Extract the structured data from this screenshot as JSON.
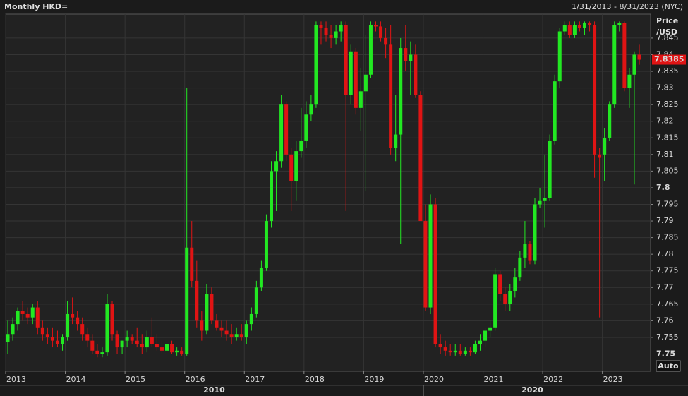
{
  "chart_data": {
    "type": "candlestick",
    "title": "Monthly HKD=",
    "date_range": "1/31/2013 - 8/31/2023 (NYC)",
    "ylabel_lines": [
      "Price",
      "/USD"
    ],
    "scale_button": "Auto",
    "x_groups": [
      "2010",
      "2020"
    ],
    "up_color": "#22e822",
    "down_color": "#e01414",
    "grid": true,
    "ylim": [
      7.7448,
      7.8522
    ],
    "yticks": [
      7.75,
      7.755,
      7.76,
      7.765,
      7.77,
      7.775,
      7.78,
      7.785,
      7.79,
      7.795,
      7.8,
      7.805,
      7.81,
      7.815,
      7.82,
      7.825,
      7.83,
      7.835,
      7.84,
      7.845
    ],
    "categories": [
      "2013",
      null,
      null,
      null,
      null,
      null,
      null,
      null,
      null,
      null,
      null,
      null,
      "2014",
      null,
      null,
      null,
      null,
      null,
      null,
      null,
      null,
      null,
      null,
      null,
      "2015",
      null,
      null,
      null,
      null,
      null,
      null,
      null,
      null,
      null,
      null,
      null,
      "2016",
      null,
      null,
      null,
      null,
      null,
      null,
      null,
      null,
      null,
      null,
      null,
      "2017",
      null,
      null,
      null,
      null,
      null,
      null,
      null,
      null,
      null,
      null,
      null,
      "2018",
      null,
      null,
      null,
      null,
      null,
      null,
      null,
      null,
      null,
      null,
      null,
      "2019",
      null,
      null,
      null,
      null,
      null,
      null,
      null,
      null,
      null,
      null,
      null,
      "2020",
      null,
      null,
      null,
      null,
      null,
      null,
      null,
      null,
      null,
      null,
      null,
      "2021",
      null,
      null,
      null,
      null,
      null,
      null,
      null,
      null,
      null,
      null,
      null,
      "2022",
      null,
      null,
      null,
      null,
      null,
      null,
      null,
      null,
      null,
      null,
      null,
      "2023",
      null,
      null,
      null,
      null,
      null,
      null,
      null
    ],
    "open": [
      7.7535,
      7.756,
      7.759,
      7.763,
      7.762,
      7.761,
      7.764,
      7.758,
      7.756,
      7.755,
      7.754,
      7.753,
      7.755,
      7.762,
      7.761,
      7.759,
      7.756,
      7.754,
      7.751,
      7.75,
      7.7505,
      7.765,
      7.756,
      7.752,
      7.754,
      7.755,
      7.754,
      7.753,
      7.752,
      7.755,
      7.753,
      7.752,
      7.751,
      7.753,
      7.7505,
      7.751,
      7.75,
      7.782,
      7.772,
      7.76,
      7.757,
      7.768,
      7.76,
      7.758,
      7.757,
      7.756,
      7.755,
      7.756,
      7.755,
      7.759,
      7.762,
      7.77,
      7.776,
      7.79,
      7.805,
      7.808,
      7.825,
      7.81,
      7.802,
      7.811,
      7.814,
      7.822,
      7.825,
      7.849,
      7.848,
      7.846,
      7.845,
      7.847,
      7.849,
      7.828,
      7.841,
      7.824,
      7.829,
      7.834,
      7.849,
      7.8485,
      7.845,
      7.843,
      7.812,
      7.816,
      7.842,
      7.838,
      7.84,
      7.828,
      7.79,
      7.764,
      7.795,
      7.753,
      7.752,
      7.751,
      7.7505,
      7.751,
      7.75,
      7.751,
      7.7505,
      7.753,
      7.754,
      7.757,
      7.758,
      7.774,
      7.768,
      7.765,
      7.769,
      7.773,
      7.779,
      7.783,
      7.778,
      7.795,
      7.796,
      7.797,
      7.814,
      7.832,
      7.847,
      7.849,
      7.846,
      7.849,
      7.848,
      7.8495,
      7.849,
      7.81,
      7.81,
      7.815,
      7.825,
      7.849,
      7.8495,
      7.83,
      7.834,
      7.84
    ],
    "high": [
      7.76,
      7.761,
      7.764,
      7.766,
      7.764,
      7.765,
      7.766,
      7.76,
      7.758,
      7.758,
      7.757,
      7.756,
      7.766,
      7.767,
      7.763,
      7.761,
      7.758,
      7.756,
      7.753,
      7.752,
      7.768,
      7.766,
      7.757,
      7.754,
      7.757,
      7.756,
      7.758,
      7.756,
      7.757,
      7.761,
      7.756,
      7.754,
      7.754,
      7.754,
      7.752,
      7.752,
      7.83,
      7.79,
      7.778,
      7.763,
      7.771,
      7.77,
      7.762,
      7.76,
      7.76,
      7.759,
      7.758,
      7.759,
      7.76,
      7.764,
      7.772,
      7.778,
      7.792,
      7.808,
      7.811,
      7.828,
      7.826,
      7.812,
      7.814,
      7.824,
      7.826,
      7.828,
      7.85,
      7.85,
      7.85,
      7.849,
      7.849,
      7.85,
      7.85,
      7.843,
      7.842,
      7.836,
      7.846,
      7.85,
      7.85,
      7.85,
      7.848,
      7.849,
      7.828,
      7.845,
      7.849,
      7.844,
      7.843,
      7.829,
      7.795,
      7.798,
      7.797,
      7.756,
      7.754,
      7.753,
      7.753,
      7.753,
      7.752,
      7.752,
      7.754,
      7.756,
      7.758,
      7.76,
      7.776,
      7.775,
      7.77,
      7.771,
      7.776,
      7.781,
      7.79,
      7.784,
      7.797,
      7.8,
      7.81,
      7.816,
      7.834,
      7.848,
      7.85,
      7.85,
      7.85,
      7.85,
      7.85,
      7.85,
      7.85,
      7.812,
      7.818,
      7.826,
      7.85,
      7.85,
      7.85,
      7.836,
      7.841,
      7.843
    ],
    "low": [
      7.75,
      7.754,
      7.757,
      7.76,
      7.759,
      7.759,
      7.756,
      7.754,
      7.753,
      7.752,
      7.752,
      7.751,
      7.754,
      7.759,
      7.757,
      7.754,
      7.752,
      7.75,
      7.749,
      7.749,
      7.7495,
      7.754,
      7.75,
      7.75,
      7.752,
      7.753,
      7.752,
      7.75,
      7.7505,
      7.752,
      7.751,
      7.75,
      7.75,
      7.75,
      7.7495,
      7.7495,
      7.7495,
      7.77,
      7.758,
      7.754,
      7.756,
      7.759,
      7.757,
      7.755,
      7.754,
      7.753,
      7.754,
      7.754,
      7.753,
      7.757,
      7.761,
      7.769,
      7.775,
      7.788,
      7.793,
      7.806,
      7.808,
      7.793,
      7.796,
      7.809,
      7.812,
      7.82,
      7.824,
      7.843,
      7.844,
      7.842,
      7.843,
      7.844,
      7.793,
      7.825,
      7.822,
      7.817,
      7.799,
      7.833,
      7.847,
      7.844,
      7.839,
      7.81,
      7.808,
      7.783,
      7.835,
      7.828,
      7.827,
      7.79,
      7.763,
      7.762,
      7.752,
      7.75,
      7.7495,
      7.7495,
      7.7495,
      7.7495,
      7.7495,
      7.7495,
      7.75,
      7.751,
      7.752,
      7.755,
      7.757,
      7.766,
      7.763,
      7.763,
      7.767,
      7.772,
      7.776,
      7.777,
      7.777,
      7.794,
      7.788,
      7.796,
      7.813,
      7.83,
      7.846,
      7.845,
      7.845,
      7.847,
      7.846,
      7.847,
      7.803,
      7.761,
      7.802,
      7.814,
      7.824,
      7.847,
      7.829,
      7.824,
      7.801,
      7.837
    ],
    "close": [
      7.756,
      7.759,
      7.763,
      7.762,
      7.761,
      7.764,
      7.758,
      7.756,
      7.755,
      7.754,
      7.753,
      7.755,
      7.762,
      7.761,
      7.759,
      7.756,
      7.754,
      7.751,
      7.75,
      7.7505,
      7.765,
      7.756,
      7.752,
      7.754,
      7.755,
      7.754,
      7.753,
      7.752,
      7.755,
      7.753,
      7.752,
      7.751,
      7.753,
      7.7505,
      7.751,
      7.75,
      7.782,
      7.772,
      7.76,
      7.757,
      7.768,
      7.76,
      7.758,
      7.757,
      7.756,
      7.755,
      7.756,
      7.755,
      7.759,
      7.762,
      7.77,
      7.776,
      7.79,
      7.805,
      7.808,
      7.825,
      7.81,
      7.802,
      7.811,
      7.814,
      7.822,
      7.825,
      7.849,
      7.848,
      7.846,
      7.845,
      7.847,
      7.849,
      7.828,
      7.841,
      7.824,
      7.829,
      7.834,
      7.849,
      7.8485,
      7.845,
      7.843,
      7.812,
      7.816,
      7.842,
      7.838,
      7.84,
      7.828,
      7.79,
      7.764,
      7.795,
      7.753,
      7.752,
      7.751,
      7.7505,
      7.751,
      7.75,
      7.751,
      7.7505,
      7.753,
      7.754,
      7.757,
      7.758,
      7.774,
      7.768,
      7.765,
      7.769,
      7.773,
      7.779,
      7.783,
      7.778,
      7.795,
      7.796,
      7.797,
      7.814,
      7.832,
      7.847,
      7.849,
      7.846,
      7.849,
      7.848,
      7.8495,
      7.849,
      7.81,
      7.809,
      7.815,
      7.825,
      7.849,
      7.8495,
      7.83,
      7.834,
      7.84,
      7.8385
    ]
  }
}
